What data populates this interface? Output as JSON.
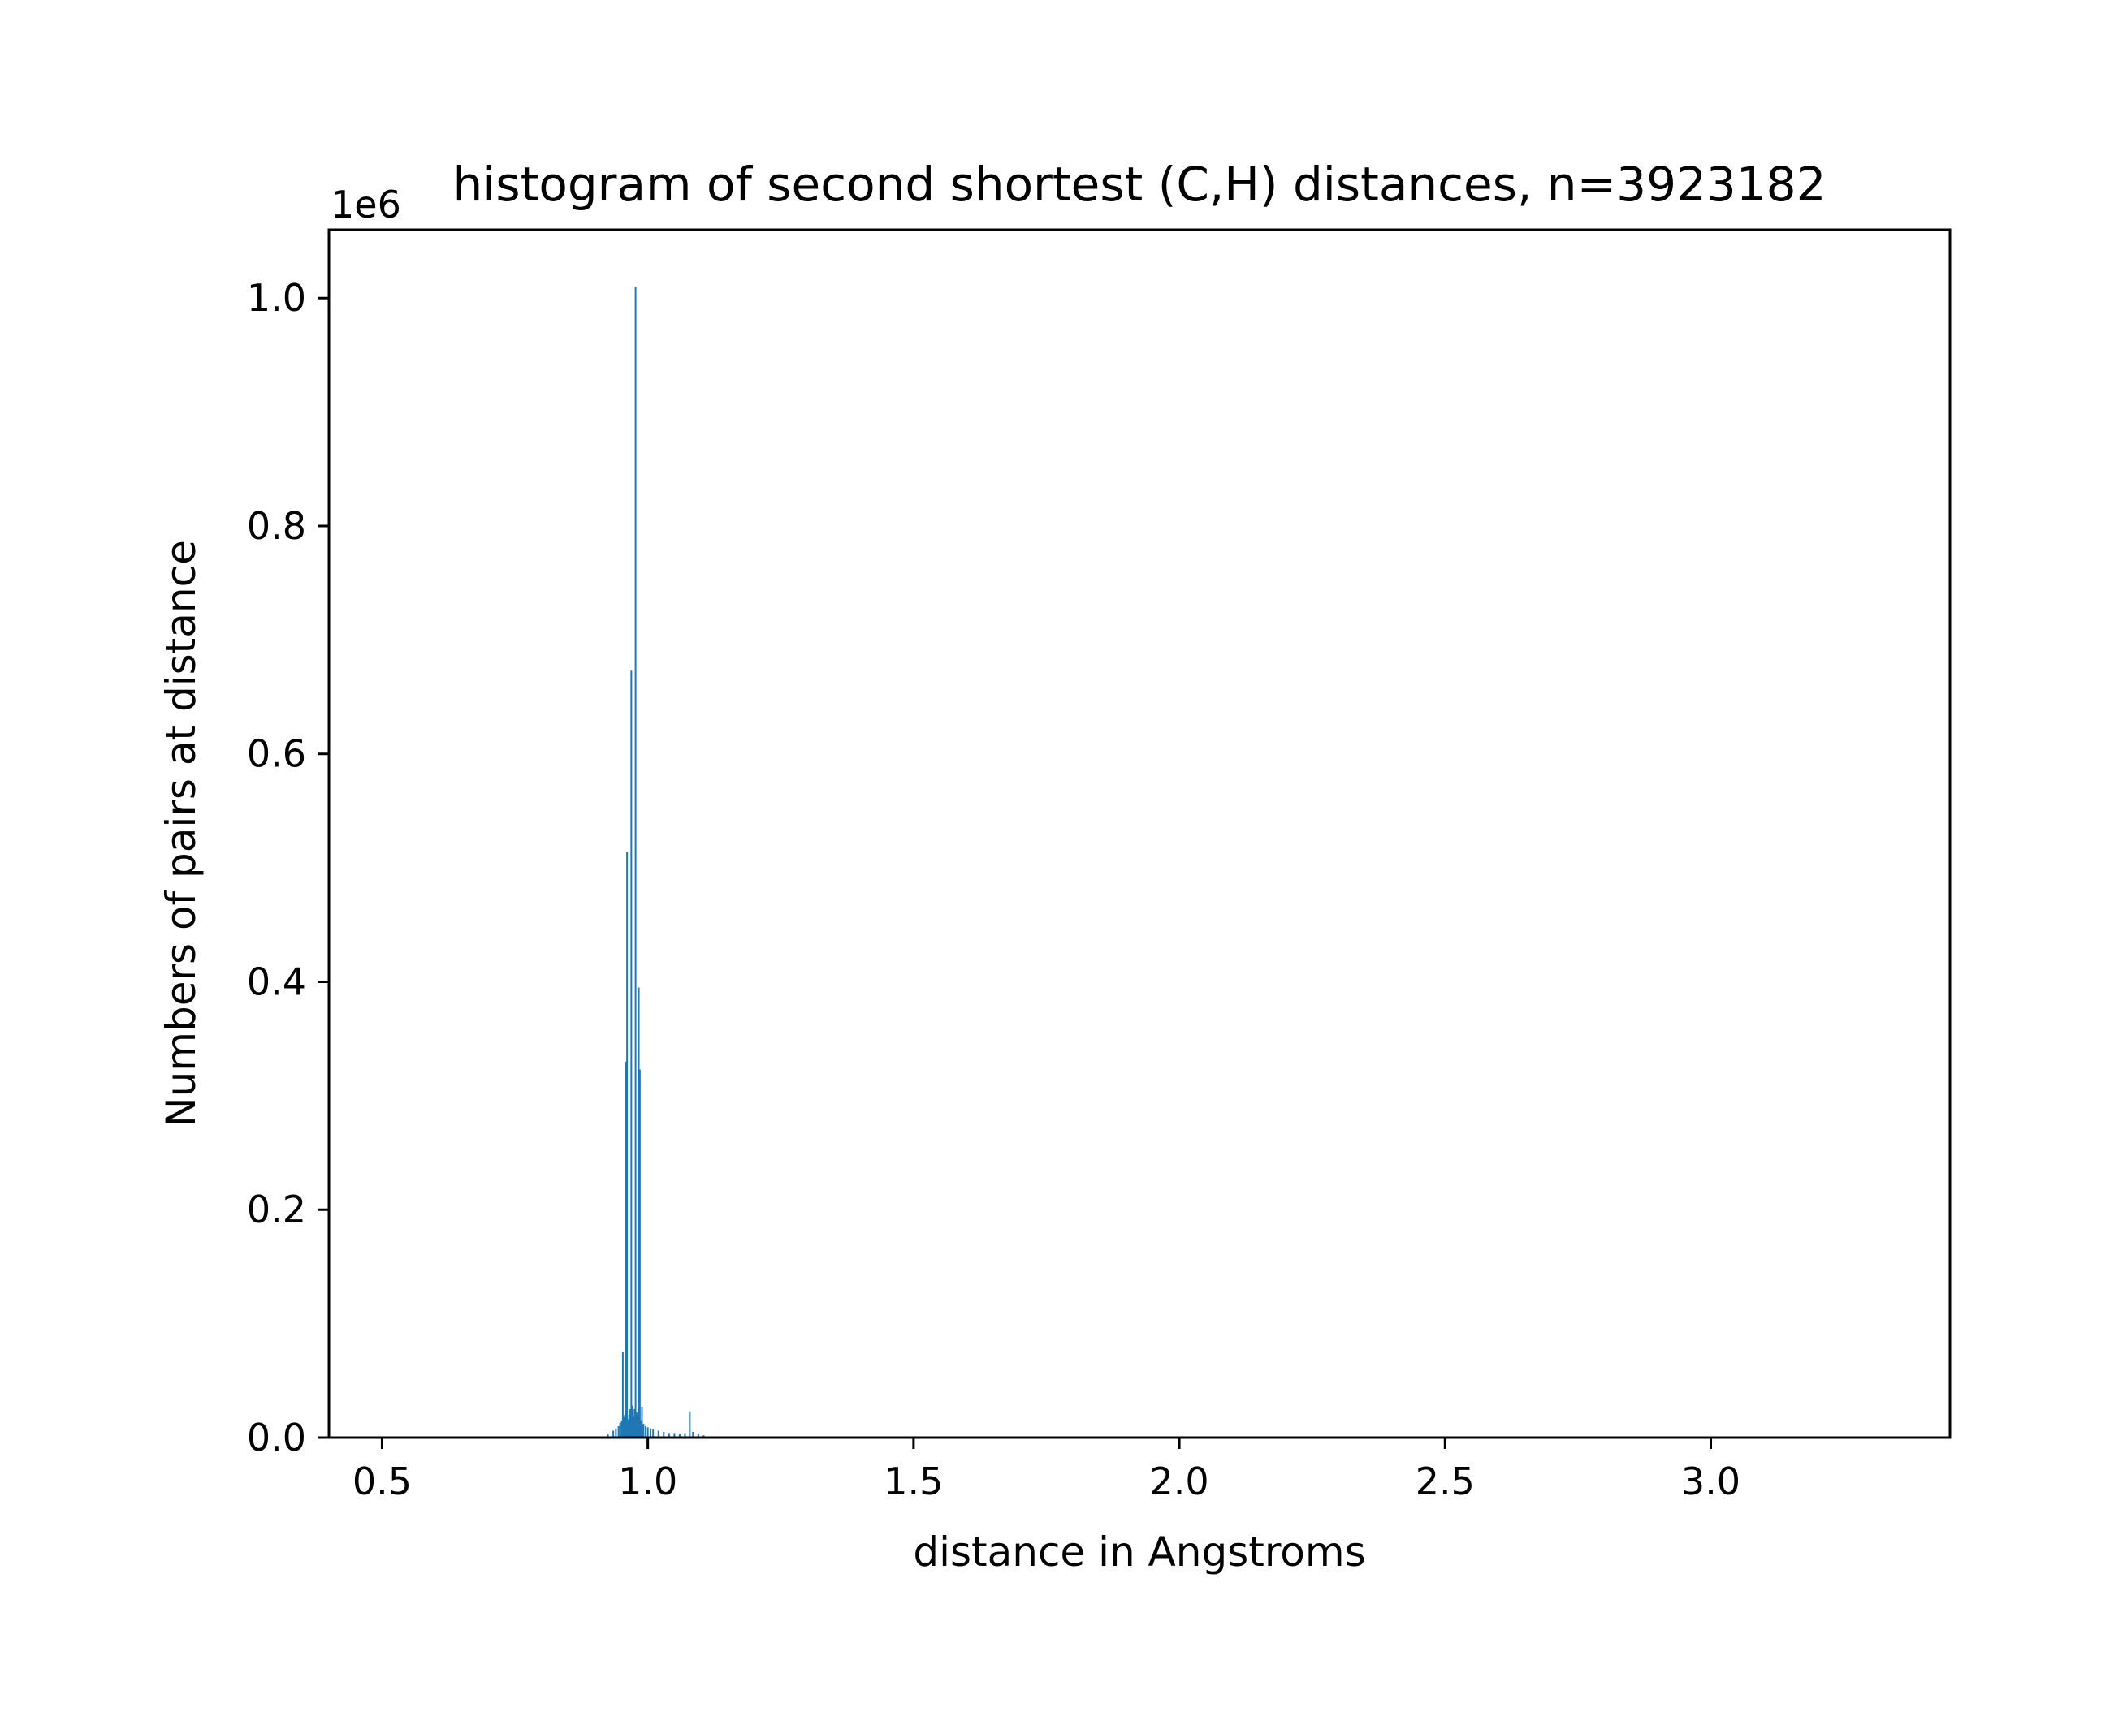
{
  "chart_data": {
    "type": "bar",
    "title": "histogram of second shortest (C,H) distances, n=3923182",
    "xlabel": "distance in Angstroms",
    "ylabel": "Numbers of pairs at distance",
    "y_offset_text": "1e6",
    "xlim": [
      0.4,
      3.45
    ],
    "ylim": [
      0,
      1.06
    ],
    "xticks": [
      0.5,
      1.0,
      1.5,
      2.0,
      2.5,
      3.0
    ],
    "xtick_labels": [
      "0.5",
      "1.0",
      "1.5",
      "2.0",
      "2.5",
      "3.0"
    ],
    "yticks": [
      0.0,
      0.2,
      0.4,
      0.6,
      0.8,
      1.0
    ],
    "ytick_labels": [
      "0.0",
      "0.2",
      "0.4",
      "0.6",
      "0.8",
      "1.0"
    ],
    "bar_color": "#1f77b4",
    "y_units_note": "counts in millions (1e6)",
    "bars": [
      {
        "x": 0.925,
        "y": 0.003
      },
      {
        "x": 0.935,
        "y": 0.006
      },
      {
        "x": 0.94,
        "y": 0.008
      },
      {
        "x": 0.945,
        "y": 0.01
      },
      {
        "x": 0.948,
        "y": 0.013
      },
      {
        "x": 0.951,
        "y": 0.015
      },
      {
        "x": 0.953,
        "y": 0.075
      },
      {
        "x": 0.955,
        "y": 0.018
      },
      {
        "x": 0.957,
        "y": 0.02
      },
      {
        "x": 0.959,
        "y": 0.33
      },
      {
        "x": 0.961,
        "y": 0.514
      },
      {
        "x": 0.963,
        "y": 0.016
      },
      {
        "x": 0.965,
        "y": 0.02
      },
      {
        "x": 0.967,
        "y": 0.025
      },
      {
        "x": 0.969,
        "y": 0.673
      },
      {
        "x": 0.971,
        "y": 0.028
      },
      {
        "x": 0.973,
        "y": 0.018
      },
      {
        "x": 0.975,
        "y": 0.025
      },
      {
        "x": 0.977,
        "y": 1.01
      },
      {
        "x": 0.979,
        "y": 0.022
      },
      {
        "x": 0.981,
        "y": 0.02
      },
      {
        "x": 0.983,
        "y": 0.395
      },
      {
        "x": 0.985,
        "y": 0.323
      },
      {
        "x": 0.987,
        "y": 0.015
      },
      {
        "x": 0.989,
        "y": 0.027
      },
      {
        "x": 0.992,
        "y": 0.012
      },
      {
        "x": 0.996,
        "y": 0.01
      },
      {
        "x": 1.0,
        "y": 0.009
      },
      {
        "x": 1.005,
        "y": 0.008
      },
      {
        "x": 1.01,
        "y": 0.007
      },
      {
        "x": 1.02,
        "y": 0.006
      },
      {
        "x": 1.03,
        "y": 0.005
      },
      {
        "x": 1.04,
        "y": 0.004
      },
      {
        "x": 1.05,
        "y": 0.004
      },
      {
        "x": 1.06,
        "y": 0.003
      },
      {
        "x": 1.07,
        "y": 0.004
      },
      {
        "x": 1.079,
        "y": 0.023
      },
      {
        "x": 1.085,
        "y": 0.005
      },
      {
        "x": 1.095,
        "y": 0.003
      },
      {
        "x": 1.105,
        "y": 0.002
      }
    ]
  }
}
